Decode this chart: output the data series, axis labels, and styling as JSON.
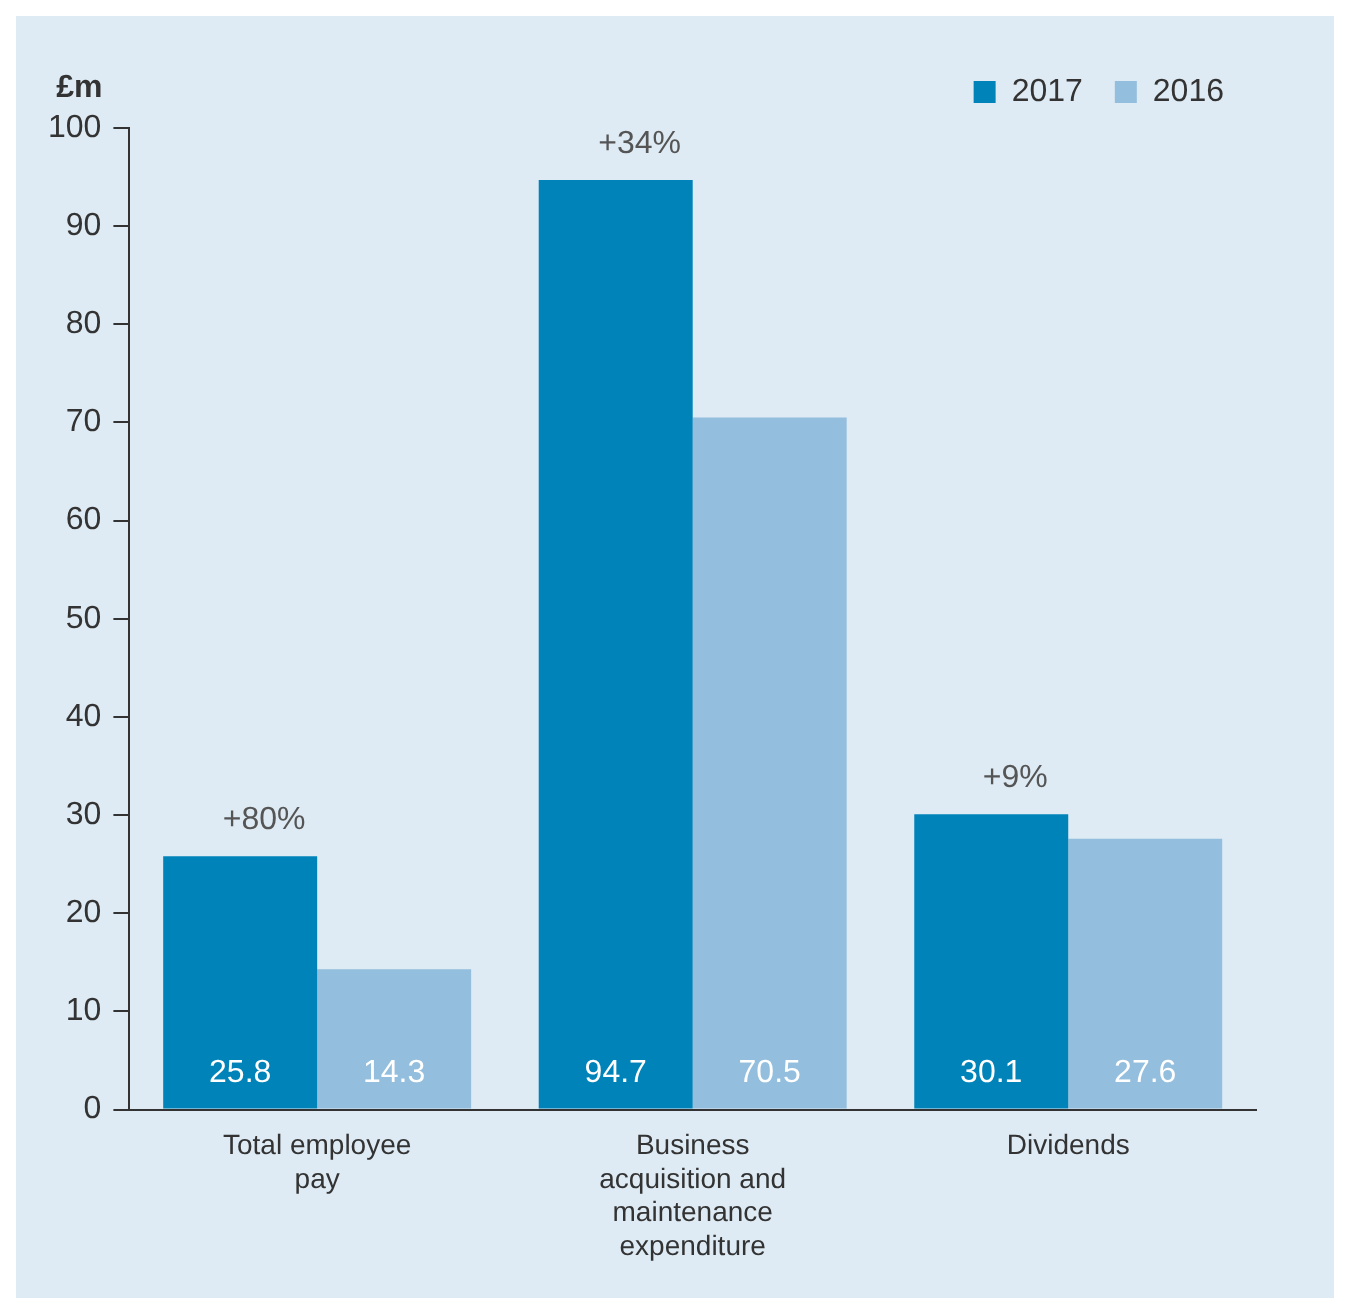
{
  "chart_data": {
    "type": "bar",
    "ylabel": "£m",
    "categories": [
      "Total employee pay",
      "Business acquisition and maintenance expenditure",
      "Dividends"
    ],
    "series": [
      {
        "name": "2017",
        "color": "#0083b8",
        "values": [
          25.8,
          94.7,
          30.1
        ]
      },
      {
        "name": "2016",
        "color": "#93bedd",
        "values": [
          14.3,
          70.5,
          27.6
        ]
      }
    ],
    "ylim": [
      0,
      100
    ],
    "yticks": [
      0,
      10,
      20,
      30,
      40,
      50,
      60,
      70,
      80,
      90,
      100
    ],
    "grid": false,
    "legend": "top right",
    "data_labels": true,
    "annotations": [
      {
        "text": "+80%",
        "x": "Total employee pay",
        "y": 25.8
      },
      {
        "text": "+34%",
        "x": "Business acquisition and maintenance expenditure",
        "y": 94.7
      },
      {
        "text": "+9%",
        "x": "Dividends",
        "y": 30.1
      }
    ]
  }
}
